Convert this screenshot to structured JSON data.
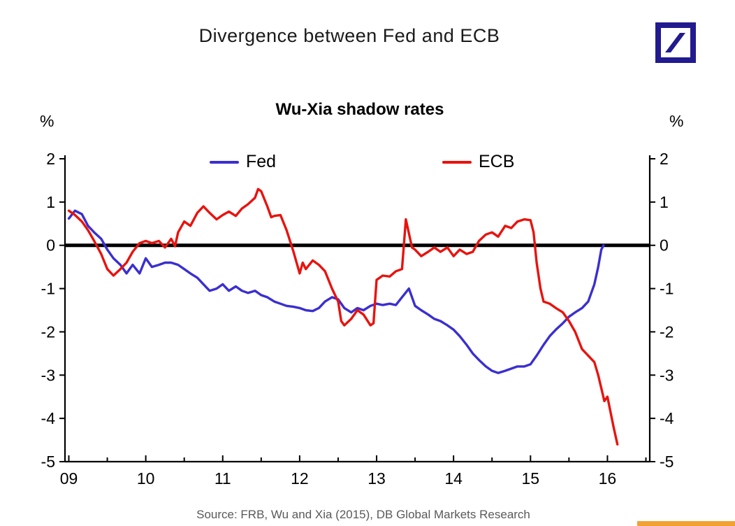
{
  "header": {
    "title": "Divergence between Fed and ECB"
  },
  "logo": {
    "name": "Deutsche Bank",
    "color": "#221a8f"
  },
  "chart_data": {
    "type": "line",
    "title": "Wu-Xia shadow rates",
    "y_unit": "%",
    "ylim": [
      -5,
      2
    ],
    "xlim": [
      2008.95,
      2016.55
    ],
    "y_ticks": [
      2,
      1,
      0,
      -1,
      -2,
      -3,
      -4,
      -5
    ],
    "x_ticks": [
      {
        "value": 2009,
        "label": "09"
      },
      {
        "value": 2010,
        "label": "10"
      },
      {
        "value": 2011,
        "label": "11"
      },
      {
        "value": 2012,
        "label": "12"
      },
      {
        "value": 2013,
        "label": "13"
      },
      {
        "value": 2014,
        "label": "14"
      },
      {
        "value": 2015,
        "label": "15"
      },
      {
        "value": 2016,
        "label": "16"
      }
    ],
    "zero_line": 0,
    "grid": false,
    "legend_position": "top",
    "series": [
      {
        "name": "Fed",
        "color": "#3a2fd0",
        "points": [
          [
            2009.0,
            0.62
          ],
          [
            2009.08,
            0.8
          ],
          [
            2009.17,
            0.72
          ],
          [
            2009.25,
            0.45
          ],
          [
            2009.33,
            0.3
          ],
          [
            2009.42,
            0.15
          ],
          [
            2009.5,
            -0.1
          ],
          [
            2009.58,
            -0.3
          ],
          [
            2009.67,
            -0.45
          ],
          [
            2009.75,
            -0.65
          ],
          [
            2009.83,
            -0.45
          ],
          [
            2009.92,
            -0.65
          ],
          [
            2010.0,
            -0.3
          ],
          [
            2010.08,
            -0.5
          ],
          [
            2010.17,
            -0.45
          ],
          [
            2010.25,
            -0.4
          ],
          [
            2010.33,
            -0.4
          ],
          [
            2010.42,
            -0.45
          ],
          [
            2010.5,
            -0.55
          ],
          [
            2010.58,
            -0.65
          ],
          [
            2010.67,
            -0.75
          ],
          [
            2010.75,
            -0.9
          ],
          [
            2010.83,
            -1.05
          ],
          [
            2010.92,
            -1.0
          ],
          [
            2011.0,
            -0.9
          ],
          [
            2011.08,
            -1.05
          ],
          [
            2011.17,
            -0.95
          ],
          [
            2011.25,
            -1.05
          ],
          [
            2011.33,
            -1.1
          ],
          [
            2011.42,
            -1.05
          ],
          [
            2011.5,
            -1.15
          ],
          [
            2011.58,
            -1.2
          ],
          [
            2011.67,
            -1.3
          ],
          [
            2011.75,
            -1.35
          ],
          [
            2011.83,
            -1.4
          ],
          [
            2011.92,
            -1.42
          ],
          [
            2012.0,
            -1.45
          ],
          [
            2012.08,
            -1.5
          ],
          [
            2012.17,
            -1.52
          ],
          [
            2012.25,
            -1.45
          ],
          [
            2012.33,
            -1.3
          ],
          [
            2012.42,
            -1.2
          ],
          [
            2012.5,
            -1.25
          ],
          [
            2012.58,
            -1.45
          ],
          [
            2012.67,
            -1.55
          ],
          [
            2012.75,
            -1.45
          ],
          [
            2012.83,
            -1.5
          ],
          [
            2012.92,
            -1.4
          ],
          [
            2013.0,
            -1.35
          ],
          [
            2013.08,
            -1.38
          ],
          [
            2013.17,
            -1.35
          ],
          [
            2013.25,
            -1.38
          ],
          [
            2013.33,
            -1.2
          ],
          [
            2013.42,
            -1.0
          ],
          [
            2013.5,
            -1.4
          ],
          [
            2013.58,
            -1.5
          ],
          [
            2013.67,
            -1.6
          ],
          [
            2013.75,
            -1.7
          ],
          [
            2013.83,
            -1.75
          ],
          [
            2013.92,
            -1.85
          ],
          [
            2014.0,
            -1.95
          ],
          [
            2014.08,
            -2.1
          ],
          [
            2014.17,
            -2.3
          ],
          [
            2014.25,
            -2.5
          ],
          [
            2014.33,
            -2.65
          ],
          [
            2014.42,
            -2.8
          ],
          [
            2014.5,
            -2.9
          ],
          [
            2014.58,
            -2.95
          ],
          [
            2014.67,
            -2.9
          ],
          [
            2014.75,
            -2.85
          ],
          [
            2014.83,
            -2.8
          ],
          [
            2014.92,
            -2.8
          ],
          [
            2015.0,
            -2.75
          ],
          [
            2015.08,
            -2.55
          ],
          [
            2015.17,
            -2.3
          ],
          [
            2015.25,
            -2.1
          ],
          [
            2015.33,
            -1.95
          ],
          [
            2015.42,
            -1.8
          ],
          [
            2015.5,
            -1.65
          ],
          [
            2015.58,
            -1.55
          ],
          [
            2015.67,
            -1.45
          ],
          [
            2015.75,
            -1.3
          ],
          [
            2015.83,
            -0.9
          ],
          [
            2015.88,
            -0.5
          ],
          [
            2015.92,
            -0.1
          ],
          [
            2015.95,
            0.0
          ]
        ]
      },
      {
        "name": "ECB",
        "color": "#e8130e",
        "points": [
          [
            2009.0,
            0.8
          ],
          [
            2009.08,
            0.7
          ],
          [
            2009.17,
            0.55
          ],
          [
            2009.25,
            0.35
          ],
          [
            2009.33,
            0.1
          ],
          [
            2009.42,
            -0.2
          ],
          [
            2009.5,
            -0.55
          ],
          [
            2009.58,
            -0.7
          ],
          [
            2009.67,
            -0.55
          ],
          [
            2009.75,
            -0.4
          ],
          [
            2009.83,
            -0.15
          ],
          [
            2009.92,
            0.05
          ],
          [
            2010.0,
            0.1
          ],
          [
            2010.08,
            0.05
          ],
          [
            2010.17,
            0.1
          ],
          [
            2010.25,
            -0.05
          ],
          [
            2010.33,
            0.15
          ],
          [
            2010.38,
            -0.02
          ],
          [
            2010.42,
            0.3
          ],
          [
            2010.5,
            0.55
          ],
          [
            2010.58,
            0.45
          ],
          [
            2010.67,
            0.75
          ],
          [
            2010.75,
            0.9
          ],
          [
            2010.83,
            0.75
          ],
          [
            2010.92,
            0.6
          ],
          [
            2011.0,
            0.7
          ],
          [
            2011.08,
            0.78
          ],
          [
            2011.17,
            0.68
          ],
          [
            2011.25,
            0.85
          ],
          [
            2011.33,
            0.95
          ],
          [
            2011.42,
            1.1
          ],
          [
            2011.46,
            1.3
          ],
          [
            2011.5,
            1.25
          ],
          [
            2011.58,
            0.9
          ],
          [
            2011.63,
            0.65
          ],
          [
            2011.67,
            0.68
          ],
          [
            2011.75,
            0.7
          ],
          [
            2011.83,
            0.35
          ],
          [
            2011.92,
            -0.15
          ],
          [
            2012.0,
            -0.65
          ],
          [
            2012.04,
            -0.4
          ],
          [
            2012.08,
            -0.55
          ],
          [
            2012.17,
            -0.35
          ],
          [
            2012.25,
            -0.45
          ],
          [
            2012.33,
            -0.6
          ],
          [
            2012.42,
            -1.0
          ],
          [
            2012.5,
            -1.3
          ],
          [
            2012.54,
            -1.75
          ],
          [
            2012.58,
            -1.85
          ],
          [
            2012.67,
            -1.7
          ],
          [
            2012.75,
            -1.5
          ],
          [
            2012.83,
            -1.6
          ],
          [
            2012.92,
            -1.85
          ],
          [
            2012.96,
            -1.8
          ],
          [
            2013.0,
            -0.8
          ],
          [
            2013.08,
            -0.7
          ],
          [
            2013.17,
            -0.72
          ],
          [
            2013.25,
            -0.6
          ],
          [
            2013.33,
            -0.55
          ],
          [
            2013.38,
            0.6
          ],
          [
            2013.46,
            -0.05
          ],
          [
            2013.5,
            -0.1
          ],
          [
            2013.58,
            -0.25
          ],
          [
            2013.67,
            -0.15
          ],
          [
            2013.75,
            -0.05
          ],
          [
            2013.83,
            -0.15
          ],
          [
            2013.92,
            -0.05
          ],
          [
            2014.0,
            -0.25
          ],
          [
            2014.08,
            -0.1
          ],
          [
            2014.17,
            -0.2
          ],
          [
            2014.25,
            -0.15
          ],
          [
            2014.33,
            0.1
          ],
          [
            2014.42,
            0.25
          ],
          [
            2014.5,
            0.3
          ],
          [
            2014.58,
            0.2
          ],
          [
            2014.67,
            0.45
          ],
          [
            2014.75,
            0.4
          ],
          [
            2014.83,
            0.55
          ],
          [
            2014.92,
            0.6
          ],
          [
            2015.0,
            0.58
          ],
          [
            2015.04,
            0.3
          ],
          [
            2015.08,
            -0.4
          ],
          [
            2015.13,
            -1.0
          ],
          [
            2015.17,
            -1.3
          ],
          [
            2015.25,
            -1.35
          ],
          [
            2015.33,
            -1.45
          ],
          [
            2015.42,
            -1.55
          ],
          [
            2015.5,
            -1.75
          ],
          [
            2015.58,
            -2.0
          ],
          [
            2015.67,
            -2.4
          ],
          [
            2015.75,
            -2.55
          ],
          [
            2015.83,
            -2.7
          ],
          [
            2015.88,
            -3.0
          ],
          [
            2015.92,
            -3.3
          ],
          [
            2015.96,
            -3.6
          ],
          [
            2016.0,
            -3.5
          ],
          [
            2016.04,
            -3.85
          ],
          [
            2016.08,
            -4.2
          ],
          [
            2016.13,
            -4.6
          ]
        ]
      }
    ],
    "source": "Source: FRB, Wu and Xia (2015), DB Global Markets Research"
  },
  "colors": {
    "axis": "#000000",
    "accent_bar": "#f2a233"
  }
}
